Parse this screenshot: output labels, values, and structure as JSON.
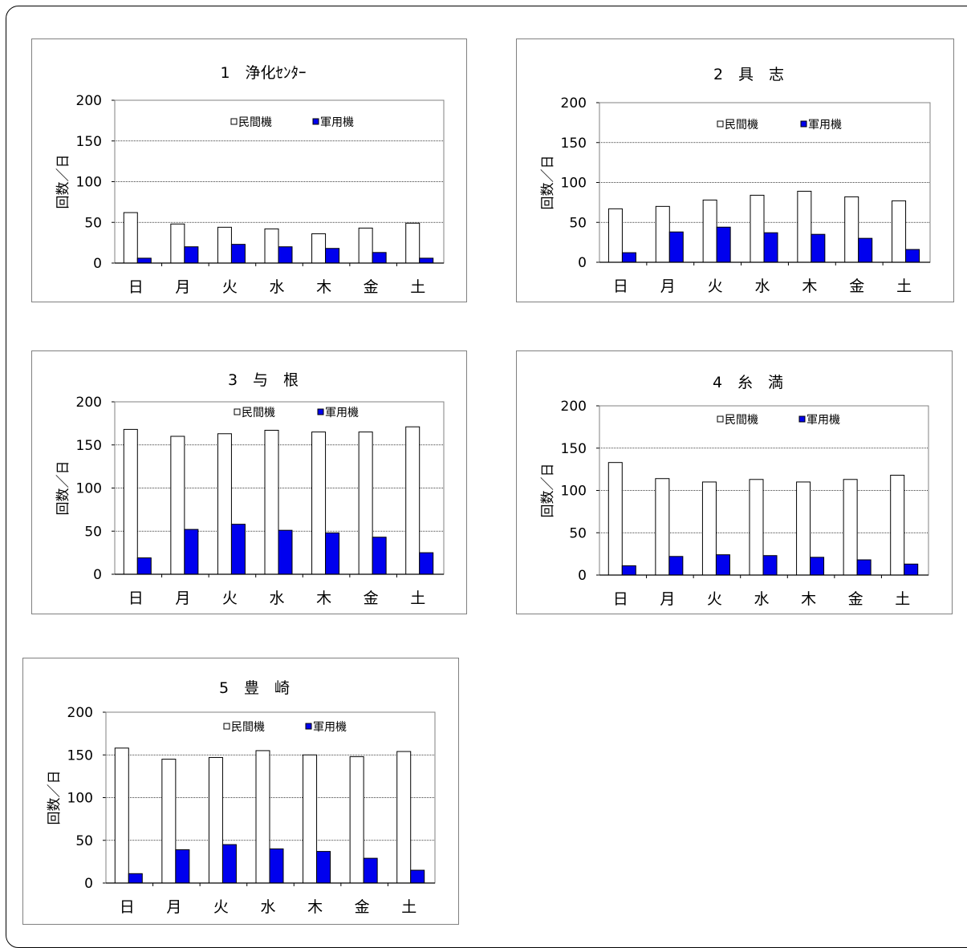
{
  "chart_data": [
    {
      "type": "bar",
      "title": "1　浄化ｾﾝﾀｰ",
      "ylabel": "回数／日",
      "categories": [
        "日",
        "月",
        "火",
        "水",
        "木",
        "金",
        "土"
      ],
      "ylim": [
        0,
        200
      ],
      "yticks": [
        0,
        50,
        100,
        150,
        200
      ],
      "grid": true,
      "legend": "top",
      "series": [
        {
          "name": "民間機",
          "color": "#ffffff",
          "values": [
            62,
            48,
            44,
            42,
            36,
            43,
            49
          ]
        },
        {
          "name": "軍用機",
          "color": "#0000ee",
          "values": [
            6,
            20,
            23,
            20,
            18,
            13,
            6
          ]
        }
      ]
    },
    {
      "type": "bar",
      "title": "2　具　志",
      "ylabel": "回数／日",
      "categories": [
        "日",
        "月",
        "火",
        "水",
        "木",
        "金",
        "土"
      ],
      "ylim": [
        0,
        200
      ],
      "yticks": [
        0,
        50,
        100,
        150,
        200
      ],
      "grid": true,
      "legend": "top",
      "series": [
        {
          "name": "民間機",
          "color": "#ffffff",
          "values": [
            67,
            70,
            78,
            84,
            89,
            82,
            77
          ]
        },
        {
          "name": "軍用機",
          "color": "#0000ee",
          "values": [
            12,
            38,
            44,
            37,
            35,
            30,
            16
          ]
        }
      ]
    },
    {
      "type": "bar",
      "title": "3　与　根",
      "ylabel": "回数／日",
      "categories": [
        "日",
        "月",
        "火",
        "水",
        "木",
        "金",
        "土"
      ],
      "ylim": [
        0,
        200
      ],
      "yticks": [
        0,
        50,
        100,
        150,
        200
      ],
      "grid": true,
      "legend": "top",
      "series": [
        {
          "name": "民間機",
          "color": "#ffffff",
          "values": [
            168,
            160,
            163,
            167,
            165,
            165,
            171
          ]
        },
        {
          "name": "軍用機",
          "color": "#0000ee",
          "values": [
            19,
            52,
            58,
            51,
            48,
            43,
            25
          ]
        }
      ]
    },
    {
      "type": "bar",
      "title": "4　糸　満",
      "ylabel": "回数／日",
      "categories": [
        "日",
        "月",
        "火",
        "水",
        "木",
        "金",
        "土"
      ],
      "ylim": [
        0,
        200
      ],
      "yticks": [
        0,
        50,
        100,
        150,
        200
      ],
      "grid": true,
      "legend": "top",
      "series": [
        {
          "name": "民間機",
          "color": "#ffffff",
          "values": [
            133,
            114,
            110,
            113,
            110,
            113,
            118
          ]
        },
        {
          "name": "軍用機",
          "color": "#0000ee",
          "values": [
            11,
            22,
            24,
            23,
            21,
            18,
            13
          ]
        }
      ]
    },
    {
      "type": "bar",
      "title": "5　豊　崎",
      "ylabel": "回数／日",
      "categories": [
        "日",
        "月",
        "火",
        "水",
        "木",
        "金",
        "土"
      ],
      "ylim": [
        0,
        200
      ],
      "yticks": [
        0,
        50,
        100,
        150,
        200
      ],
      "grid": true,
      "legend": "top",
      "series": [
        {
          "name": "民間機",
          "color": "#ffffff",
          "values": [
            158,
            145,
            147,
            155,
            150,
            148,
            154
          ]
        },
        {
          "name": "軍用機",
          "color": "#0000ee",
          "values": [
            11,
            39,
            45,
            40,
            37,
            29,
            15
          ]
        }
      ]
    }
  ]
}
